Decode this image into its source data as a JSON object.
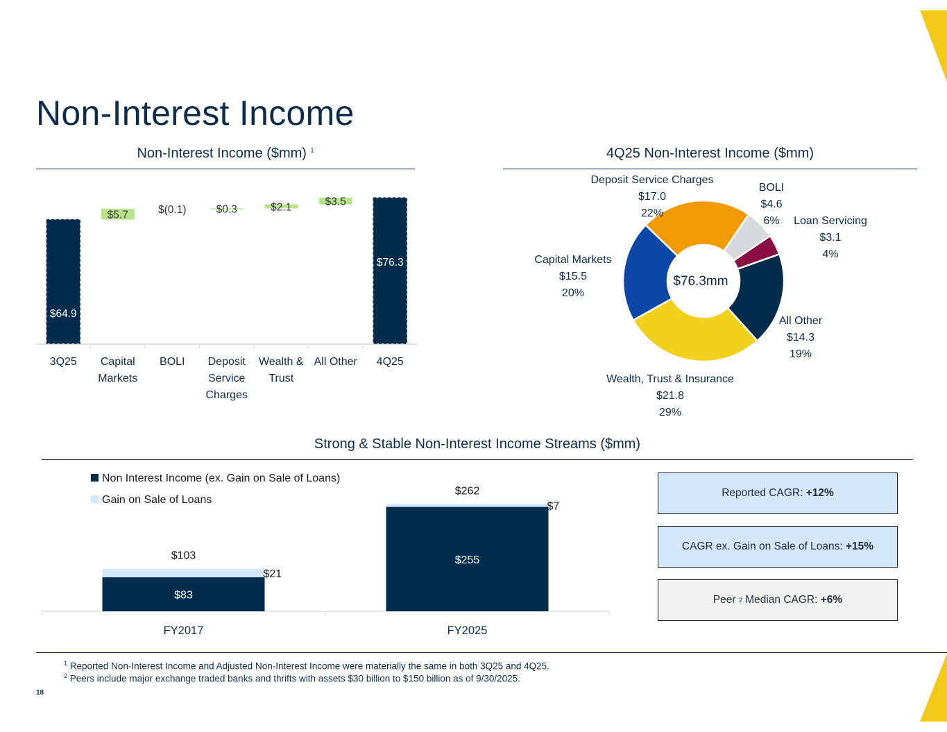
{
  "page": {
    "title": "Non-Interest Income",
    "page_number": "18",
    "footnotes": [
      {
        "marker": "1",
        "text": "Reported Non-Interest Income and Adjusted Non-Interest Income were materially the same in both 3Q25 and 4Q25."
      },
      {
        "marker": "2",
        "text": "Peers include major exchange traded banks and thrifts with assets $30 billion to $150 billion as of 9/30/2025."
      }
    ],
    "colors": {
      "navy": "#022c4c",
      "green": "#b9e48e",
      "accent_yellow": "#f2c918",
      "light_blue": "#d3e9fb",
      "light_gray": "#f2f2f2"
    }
  },
  "chart_data": [
    {
      "type": "waterfall",
      "title": "Non-Interest Income ($mm)",
      "title_superscript": "1",
      "categories": [
        "3Q25",
        "Capital Markets",
        "BOLI",
        "Deposit Service Charges",
        "Wealth & Trust",
        "All Other",
        "4Q25"
      ],
      "category_label_lines": [
        [
          "3Q25"
        ],
        [
          "Capital",
          "Markets"
        ],
        [
          "BOLI"
        ],
        [
          "Deposit",
          "Service",
          "Charges"
        ],
        [
          "Wealth &",
          "Trust"
        ],
        [
          "All Other"
        ],
        [
          "4Q25"
        ]
      ],
      "values": [
        64.9,
        5.7,
        -0.1,
        0.3,
        2.1,
        3.5,
        76.3
      ],
      "kinds": [
        "total",
        "delta",
        "delta",
        "delta",
        "delta",
        "delta",
        "total"
      ],
      "labels": [
        "$64.9",
        "$5.7",
        "$(0.1)",
        "$0.3",
        "$2.1",
        "$3.5",
        "$76.3"
      ],
      "ylim": [
        0,
        80
      ]
    },
    {
      "type": "pie",
      "subtype": "donut",
      "title": "4Q25 Non-Interest Income ($mm)",
      "center_label": "$76.3mm",
      "slices": [
        {
          "name": "Deposit Service Charges",
          "value": 17.0,
          "value_label": "$17.0",
          "pct": "22%",
          "color": "#f09a06"
        },
        {
          "name": "BOLI",
          "value": 4.6,
          "value_label": "$4.6",
          "pct": "6%",
          "color": "#d7d9dc"
        },
        {
          "name": "Loan Servicing",
          "value": 3.1,
          "value_label": "$3.1",
          "pct": "4%",
          "color": "#8a0e44"
        },
        {
          "name": "All Other",
          "value": 14.3,
          "value_label": "$14.3",
          "pct": "19%",
          "color": "#022c4c"
        },
        {
          "name": "Wealth, Trust & Insurance",
          "value": 21.8,
          "value_label": "$21.8",
          "pct": "29%",
          "color": "#f2d11e"
        },
        {
          "name": "Capital Markets",
          "value": 15.5,
          "value_label": "$15.5",
          "pct": "20%",
          "color": "#0d47a8"
        }
      ]
    },
    {
      "type": "bar",
      "subtype": "stacked",
      "title": "Strong & Stable Non-Interest Income Streams ($mm)",
      "categories": [
        "FY2017",
        "FY2025"
      ],
      "series": [
        {
          "name": "Non Interest Income (ex. Gain on Sale of Loans)",
          "values": [
            83,
            255
          ],
          "labels": [
            "$83",
            "$255"
          ],
          "color": "#022c4c"
        },
        {
          "name": "Gain on Sale of Loans",
          "values": [
            21,
            7
          ],
          "labels": [
            "$21",
            "$7"
          ],
          "color": "#d3e9fb"
        }
      ],
      "totals": [
        "$103",
        "$262"
      ],
      "ylim": [
        0,
        300
      ]
    }
  ],
  "cagr_boxes": [
    {
      "label": "Reported CAGR:",
      "value": "+12%",
      "background": "#d3e9fb"
    },
    {
      "label": "CAGR ex. Gain on Sale of Loans:",
      "value": "+15%",
      "background": "#d3e9fb"
    },
    {
      "label_prefix": "Peer",
      "superscript": "2",
      "label": "Median CAGR:",
      "value": "+6%",
      "background": "#f2f2f2"
    }
  ]
}
